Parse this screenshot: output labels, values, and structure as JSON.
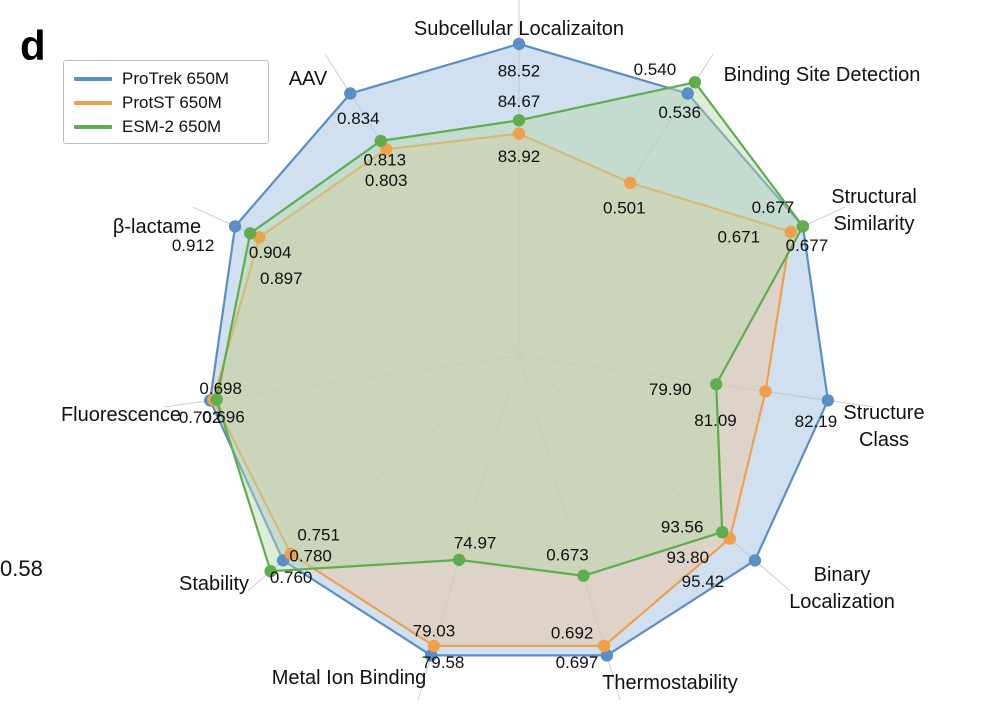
{
  "panel_label": "d",
  "side_value": "0.58",
  "chart_data": {
    "type": "radar",
    "title": "",
    "axes": [
      {
        "name": "Subcellular Localizaiton",
        "lines": [
          "Subcellular Localizaiton"
        ]
      },
      {
        "name": "Binding Site Detection",
        "lines": [
          "Binding Site Detection"
        ]
      },
      {
        "name": "Structural Similarity",
        "lines": [
          "Structural",
          "Similarity"
        ]
      },
      {
        "name": "Structure Class",
        "lines": [
          "Structure",
          "Class"
        ]
      },
      {
        "name": "Binary Localization",
        "lines": [
          "Binary",
          "Localization"
        ]
      },
      {
        "name": "Thermostability",
        "lines": [
          "Thermostability"
        ]
      },
      {
        "name": "Metal Ion Binding",
        "lines": [
          "Metal Ion Binding"
        ]
      },
      {
        "name": "Stability",
        "lines": [
          "Stability"
        ]
      },
      {
        "name": "Fluorescence",
        "lines": [
          "Fluorescence"
        ]
      },
      {
        "name": "β-lactame",
        "lines": [
          "β-lactame"
        ]
      },
      {
        "name": "AAV",
        "lines": [
          "AAV"
        ]
      }
    ],
    "series": [
      {
        "name": "ProTrek 650M",
        "color": "#5b8ec4",
        "fill": "#a9c7e5",
        "labels": [
          "88.52",
          "0.536",
          "0.677",
          "82.19",
          "95.42",
          "0.697",
          "79.58",
          "0.760",
          "0.702",
          "0.912",
          "0.834"
        ],
        "normalized": [
          0.94,
          0.94,
          0.94,
          0.94,
          0.94,
          0.94,
          0.94,
          0.94,
          0.94,
          0.94,
          0.94
        ]
      },
      {
        "name": "ProtST 650M",
        "color": "#f0a04b",
        "fill": "#e8c9a8",
        "labels": [
          "83.92",
          "0.501",
          "0.671",
          "81.09",
          "93.80",
          "0.692",
          "79.03",
          "0.751",
          "0.696",
          "0.897",
          "0.803"
        ],
        "normalized": [
          0.67,
          0.62,
          0.9,
          0.75,
          0.84,
          0.91,
          0.91,
          0.91,
          0.93,
          0.86,
          0.74
        ]
      },
      {
        "name": "ESM-2 650M",
        "color": "#5fae4e",
        "fill": "#b5d8a9",
        "labels": [
          "84.67",
          "0.540",
          "0.677",
          "79.90",
          "93.56",
          "0.673",
          "74.97",
          "0.780",
          "0.698",
          "0.904",
          "0.813"
        ],
        "normalized": [
          0.71,
          0.98,
          0.94,
          0.6,
          0.81,
          0.69,
          0.64,
          0.99,
          0.92,
          0.89,
          0.77
        ]
      }
    ],
    "legend_position": "top-left"
  }
}
